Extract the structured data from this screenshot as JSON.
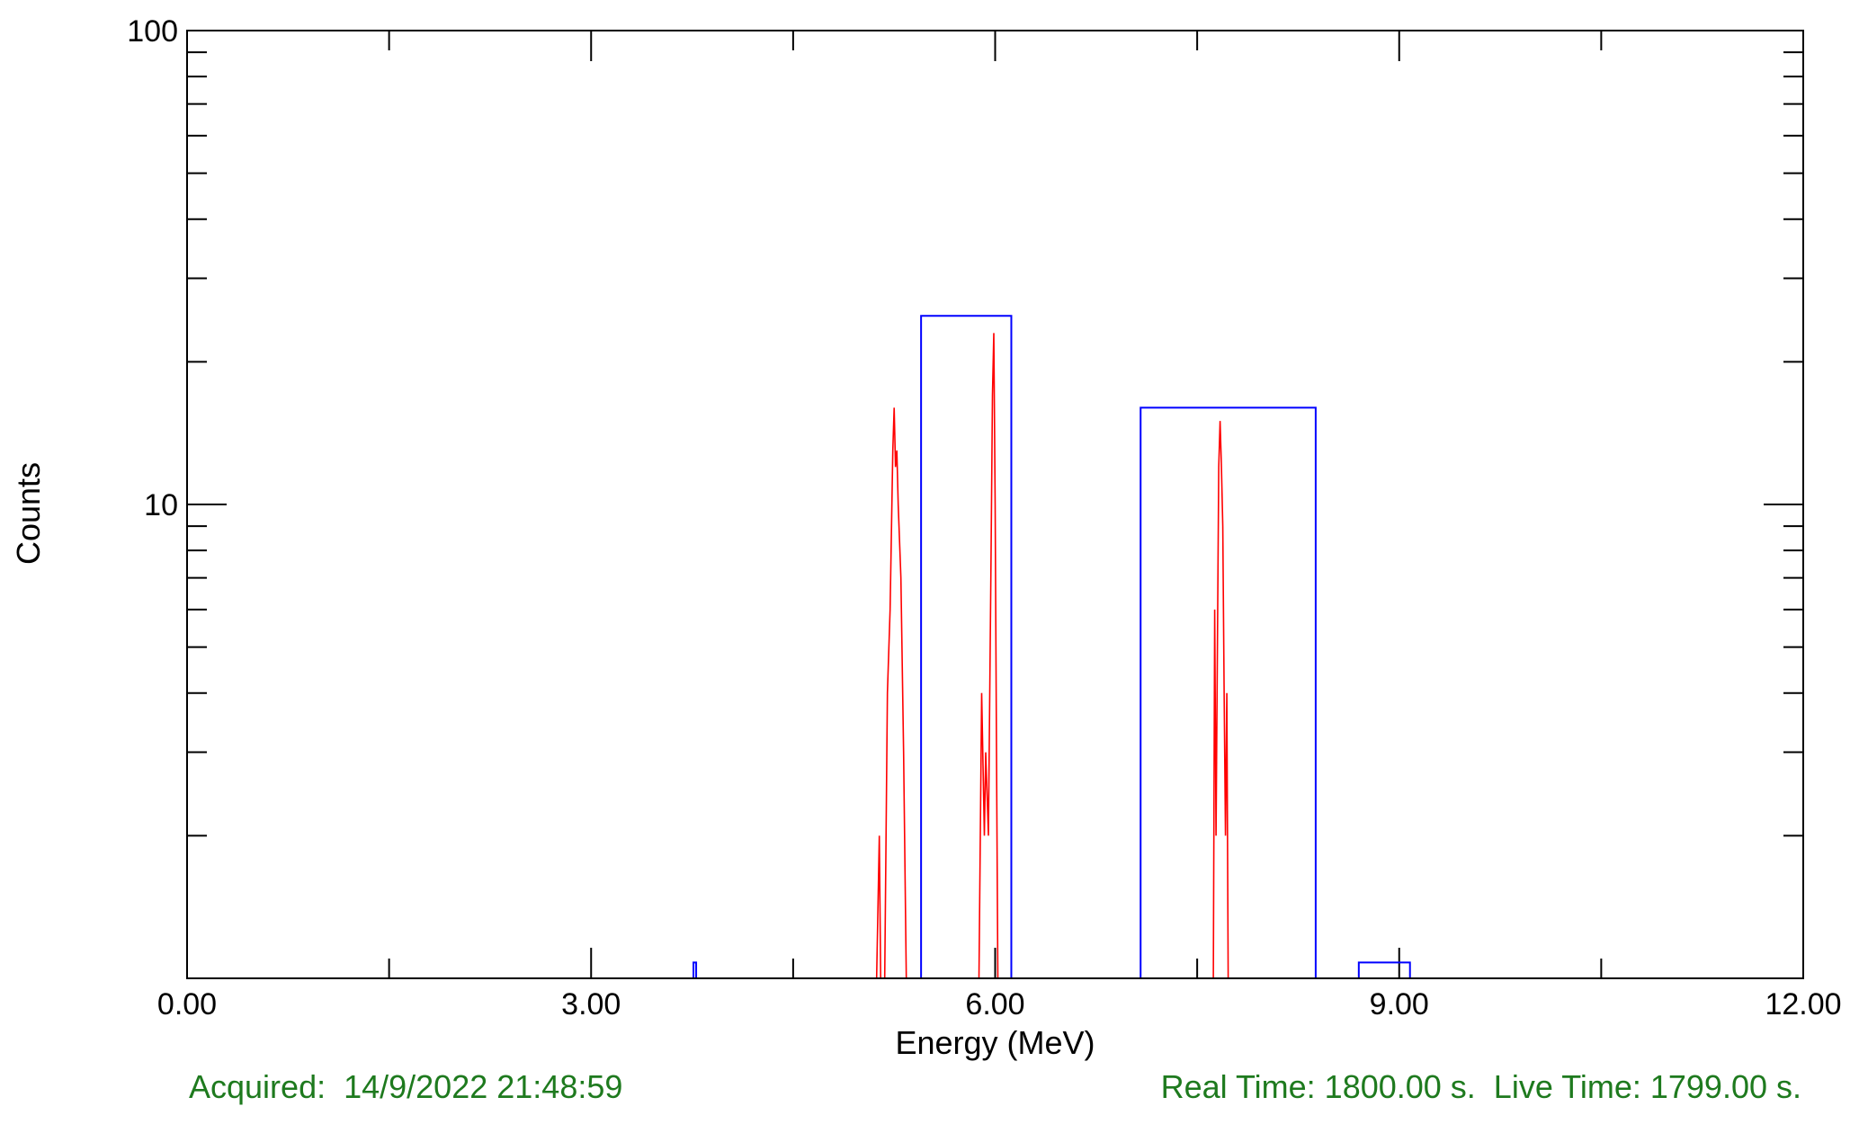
{
  "footer": {
    "acquired": "Acquired:  14/9/2022 21:48:59",
    "times": "Real Time: 1800.00 s.  Live Time: 1799.00 s."
  },
  "colors": {
    "axis": "#000000",
    "spectrum": "#ff0000",
    "histogram": "#0000ff",
    "footer_text": "#1e7a1e"
  },
  "chart_data": {
    "type": "line",
    "xlabel": "Energy (MeV)",
    "ylabel": "Counts",
    "xlim": [
      0,
      12
    ],
    "ylim": [
      1,
      100
    ],
    "yscale": "log",
    "x_ticks": [
      0,
      3,
      6,
      9,
      12
    ],
    "x_tick_labels": [
      "0.00",
      "3.00",
      "6.00",
      "9.00",
      "12.00"
    ],
    "y_tick_labels": [
      "10",
      "100"
    ],
    "grid": false,
    "series": [
      {
        "color": "#ff0000",
        "style": "spectrum",
        "points": [
          [
            0.0,
            1
          ],
          [
            5.12,
            1
          ],
          [
            5.14,
            2
          ],
          [
            5.15,
            1
          ],
          [
            5.18,
            1
          ],
          [
            5.2,
            4
          ],
          [
            5.22,
            6
          ],
          [
            5.24,
            13
          ],
          [
            5.25,
            16
          ],
          [
            5.26,
            12
          ],
          [
            5.27,
            13
          ],
          [
            5.28,
            10
          ],
          [
            5.3,
            7
          ],
          [
            5.32,
            3
          ],
          [
            5.34,
            1
          ],
          [
            5.88,
            1
          ],
          [
            5.9,
            4
          ],
          [
            5.92,
            2
          ],
          [
            5.93,
            3
          ],
          [
            5.95,
            2
          ],
          [
            5.97,
            8
          ],
          [
            5.98,
            17
          ],
          [
            5.99,
            23
          ],
          [
            6.0,
            10
          ],
          [
            6.01,
            3
          ],
          [
            6.02,
            1
          ],
          [
            7.62,
            1
          ],
          [
            7.63,
            6
          ],
          [
            7.64,
            2
          ],
          [
            7.66,
            12
          ],
          [
            7.67,
            15
          ],
          [
            7.68,
            12
          ],
          [
            7.69,
            9
          ],
          [
            7.7,
            4
          ],
          [
            7.71,
            2
          ],
          [
            7.72,
            4
          ],
          [
            7.73,
            1
          ],
          [
            12.0,
            1
          ]
        ]
      },
      {
        "color": "#0000ff",
        "style": "histogram",
        "bins": [
          [
            3.76,
            3.78,
            1.08
          ],
          [
            5.45,
            6.12,
            25
          ],
          [
            7.08,
            8.38,
            16
          ],
          [
            8.7,
            9.08,
            1.08
          ]
        ]
      }
    ]
  }
}
